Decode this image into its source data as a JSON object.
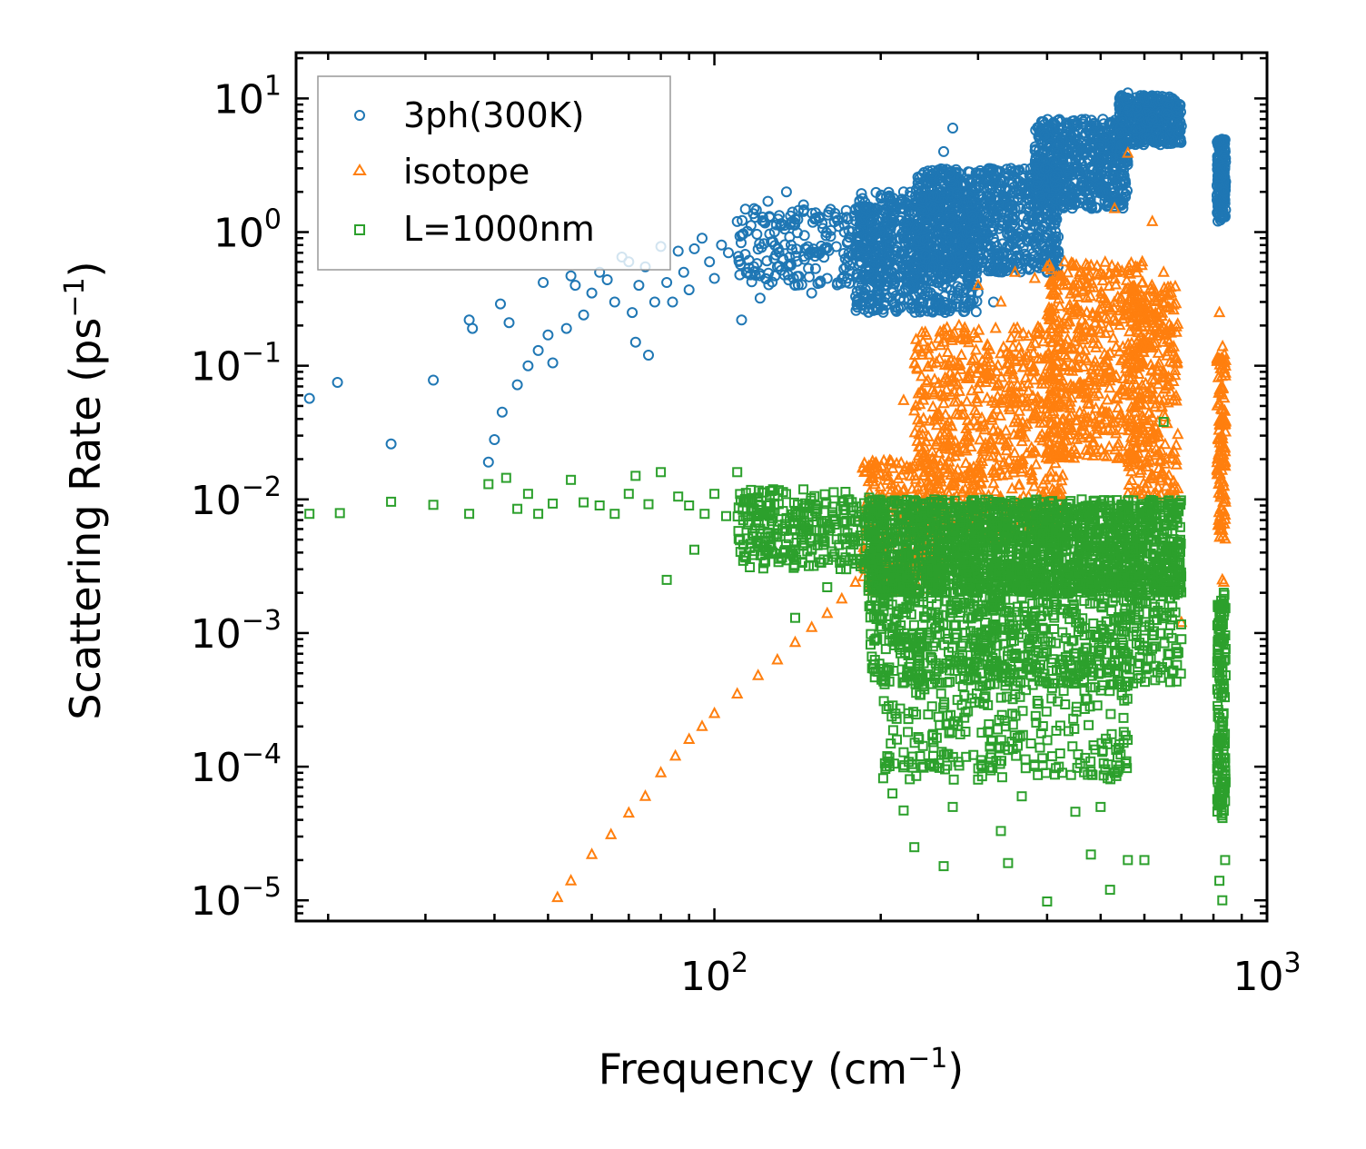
{
  "chart_data": {
    "type": "scatter",
    "title": "",
    "xlabel": "Frequency (cm",
    "xlabel_sup": "−1",
    "xlabel_tail": ")",
    "ylabel": "Scattering Rate (ps",
    "ylabel_sup": "−1",
    "ylabel_tail": ")",
    "xscale": "log",
    "yscale": "log",
    "xlim": [
      17.5,
      1000
    ],
    "ylim": [
      7e-06,
      22
    ],
    "x_ticks": [
      {
        "value": 100,
        "base": "10",
        "exp": "2"
      },
      {
        "value": 1000,
        "base": "10",
        "exp": "3"
      }
    ],
    "y_ticks": [
      {
        "value": 10,
        "base": "10",
        "exp": "1"
      },
      {
        "value": 1,
        "base": "10",
        "exp": "0"
      },
      {
        "value": 0.1,
        "base": "10",
        "exp": "−1"
      },
      {
        "value": 0.01,
        "base": "10",
        "exp": "−2"
      },
      {
        "value": 0.001,
        "base": "10",
        "exp": "−3"
      },
      {
        "value": 0.0001,
        "base": "10",
        "exp": "−4"
      },
      {
        "value": 1e-05,
        "base": "10",
        "exp": "−5"
      }
    ],
    "legend_position": "top-left",
    "series": [
      {
        "name": "3ph(300K)",
        "marker": "circle",
        "color": "#1f77b4",
        "points": [
          [
            18.5,
            0.057
          ],
          [
            20.8,
            0.075
          ],
          [
            26,
            0.026
          ],
          [
            31,
            0.078
          ],
          [
            36,
            0.22
          ],
          [
            36.5,
            0.19
          ],
          [
            39,
            0.019
          ],
          [
            40,
            0.028
          ],
          [
            41,
            0.29
          ],
          [
            41.3,
            0.045
          ],
          [
            42.5,
            0.21
          ],
          [
            44,
            0.072
          ],
          [
            46,
            0.1
          ],
          [
            48,
            0.13
          ],
          [
            49,
            0.42
          ],
          [
            50,
            0.17
          ],
          [
            51,
            0.105
          ],
          [
            54,
            0.19
          ],
          [
            55,
            0.47
          ],
          [
            56,
            0.4
          ],
          [
            58,
            0.24
          ],
          [
            60,
            0.35
          ],
          [
            62,
            0.5
          ],
          [
            64,
            0.44
          ],
          [
            66,
            0.3
          ],
          [
            68,
            0.65
          ],
          [
            70,
            0.6
          ],
          [
            71,
            0.25
          ],
          [
            72,
            0.15
          ],
          [
            73,
            0.4
          ],
          [
            75,
            0.55
          ],
          [
            76,
            0.12
          ],
          [
            78,
            0.3
          ],
          [
            80,
            0.78
          ],
          [
            82,
            0.42
          ],
          [
            84,
            0.3
          ],
          [
            86,
            0.72
          ],
          [
            88,
            0.5
          ],
          [
            90,
            0.37
          ],
          [
            92,
            0.75
          ],
          [
            95,
            0.9
          ],
          [
            98,
            0.6
          ],
          [
            100,
            0.45
          ],
          [
            103,
            0.8
          ],
          [
            106,
            0.7
          ],
          [
            110,
            1.2
          ],
          [
            112,
            0.22
          ],
          [
            115,
            0.5
          ],
          [
            118,
            1.5
          ],
          [
            121,
            0.32
          ],
          [
            125,
            1.7
          ],
          [
            130,
            0.55
          ],
          [
            135,
            2.0
          ],
          [
            140,
            0.4
          ],
          [
            145,
            1.6
          ],
          [
            150,
            0.35
          ],
          [
            155,
            1.3
          ],
          [
            160,
            0.45
          ],
          [
            168,
            1.1
          ],
          [
            175,
            0.65
          ],
          [
            185,
            0.3
          ],
          [
            200,
            1.8
          ],
          [
            210,
            0.5
          ],
          [
            220,
            2.0
          ],
          [
            235,
            0.3
          ],
          [
            250,
            1.5
          ],
          [
            260,
            4.0
          ],
          [
            270,
            6.0
          ],
          [
            280,
            0.5
          ],
          [
            300,
            2.5
          ],
          [
            320,
            0.3
          ],
          [
            350,
            1.5
          ],
          [
            380,
            2.8
          ],
          [
            400,
            0.5
          ],
          [
            420,
            3.5
          ],
          [
            450,
            4.0
          ],
          [
            480,
            5.5
          ],
          [
            500,
            2.0
          ],
          [
            520,
            6.5
          ],
          [
            540,
            9.0
          ],
          [
            560,
            11.0
          ],
          [
            580,
            8.5
          ],
          [
            600,
            10.0
          ],
          [
            620,
            7.0
          ],
          [
            650,
            5.0
          ],
          [
            680,
            6.5
          ],
          [
            700,
            6.2
          ],
          [
            820,
            4.8
          ],
          [
            825,
            1.5
          ],
          [
            830,
            3.0
          ],
          [
            835,
            2.0
          ],
          [
            840,
            1.3
          ]
        ],
        "clouds": [
          {
            "x": [
              110,
              240
            ],
            "y": [
              0.4,
              1.5
            ],
            "n": 300
          },
          {
            "x": [
              180,
              300
            ],
            "y": [
              0.25,
              2.0
            ],
            "n": 700
          },
          {
            "x": [
              230,
              420
            ],
            "y": [
              0.5,
              3.0
            ],
            "n": 800
          },
          {
            "x": [
              380,
              560
            ],
            "y": [
              1.5,
              7.0
            ],
            "n": 600
          },
          {
            "x": [
              540,
              700
            ],
            "y": [
              4.5,
              10.5
            ],
            "n": 350
          },
          {
            "x": [
              812,
              842
            ],
            "y": [
              1.2,
              5.0
            ],
            "n": 150
          }
        ]
      },
      {
        "name": "isotope",
        "marker": "triangle",
        "color": "#ff7f0e",
        "points": [
          [
            52,
            1.05e-05
          ],
          [
            55,
            1.4e-05
          ],
          [
            60,
            2.2e-05
          ],
          [
            65,
            3.1e-05
          ],
          [
            70,
            4.5e-05
          ],
          [
            75,
            6e-05
          ],
          [
            80,
            9e-05
          ],
          [
            85,
            0.00012
          ],
          [
            90,
            0.00016
          ],
          [
            95,
            0.0002
          ],
          [
            100,
            0.00025
          ],
          [
            110,
            0.00035
          ],
          [
            120,
            0.00048
          ],
          [
            130,
            0.00063
          ],
          [
            140,
            0.00085
          ],
          [
            150,
            0.0011
          ],
          [
            160,
            0.0014
          ],
          [
            170,
            0.0018
          ],
          [
            180,
            0.0024
          ],
          [
            195,
            0.004
          ],
          [
            210,
            0.008
          ],
          [
            220,
            0.055
          ],
          [
            240,
            0.06
          ],
          [
            260,
            0.15
          ],
          [
            280,
            0.12
          ],
          [
            300,
            0.4
          ],
          [
            330,
            0.3
          ],
          [
            350,
            0.5
          ],
          [
            380,
            0.45
          ],
          [
            400,
            0.55
          ],
          [
            430,
            0.12
          ],
          [
            470,
            0.2
          ],
          [
            500,
            0.5
          ],
          [
            530,
            1.5
          ],
          [
            560,
            3.9
          ],
          [
            590,
            0.25
          ],
          [
            620,
            1.2
          ],
          [
            650,
            0.5
          ],
          [
            690,
            0.012
          ],
          [
            700,
            0.0012
          ],
          [
            820,
            0.25
          ],
          [
            825,
            0.02
          ],
          [
            830,
            0.0025
          ],
          [
            835,
            0.0024
          ],
          [
            840,
            0.01
          ]
        ],
        "clouds": [
          {
            "x": [
              185,
              260
            ],
            "y": [
              0.002,
              0.02
            ],
            "n": 250
          },
          {
            "x": [
              230,
              430
            ],
            "y": [
              0.005,
              0.2
            ],
            "n": 700
          },
          {
            "x": [
              400,
              600
            ],
            "y": [
              0.02,
              0.6
            ],
            "n": 500
          },
          {
            "x": [
              560,
              690
            ],
            "y": [
              0.01,
              0.4
            ],
            "n": 300
          },
          {
            "x": [
              812,
              842
            ],
            "y": [
              0.005,
              0.15
            ],
            "n": 120
          }
        ]
      },
      {
        "name": "L=1000nm",
        "marker": "square",
        "color": "#2ca02c",
        "points": [
          [
            18.5,
            0.0078
          ],
          [
            21,
            0.0079
          ],
          [
            26,
            0.0096
          ],
          [
            31,
            0.0091
          ],
          [
            36,
            0.0078
          ],
          [
            39,
            0.013
          ],
          [
            42,
            0.0145
          ],
          [
            44,
            0.0085
          ],
          [
            46,
            0.011
          ],
          [
            48,
            0.0078
          ],
          [
            51,
            0.0093
          ],
          [
            55,
            0.014
          ],
          [
            58,
            0.0095
          ],
          [
            62,
            0.009
          ],
          [
            66,
            0.0078
          ],
          [
            70,
            0.011
          ],
          [
            72,
            0.015
          ],
          [
            76,
            0.0092
          ],
          [
            80,
            0.016
          ],
          [
            82,
            0.0025
          ],
          [
            86,
            0.0105
          ],
          [
            90,
            0.009
          ],
          [
            92,
            0.0042
          ],
          [
            96,
            0.0078
          ],
          [
            100,
            0.011
          ],
          [
            105,
            0.0075
          ],
          [
            110,
            0.016
          ],
          [
            115,
            0.0065
          ],
          [
            120,
            0.0045
          ],
          [
            125,
            0.009
          ],
          [
            130,
            0.0055
          ],
          [
            135,
            0.0035
          ],
          [
            140,
            0.0013
          ],
          [
            150,
            0.0042
          ],
          [
            160,
            0.0022
          ],
          [
            170,
            0.0035
          ],
          [
            180,
            0.0033
          ],
          [
            190,
            0.0022
          ],
          [
            200,
            0.0013
          ],
          [
            205,
            0.0001
          ],
          [
            210,
            6.3e-05
          ],
          [
            220,
            4.7e-05
          ],
          [
            230,
            2.5e-05
          ],
          [
            250,
            0.0001
          ],
          [
            260,
            1.8e-05
          ],
          [
            270,
            5e-05
          ],
          [
            300,
            8e-05
          ],
          [
            330,
            3.3e-05
          ],
          [
            340,
            1.9e-05
          ],
          [
            360,
            6e-05
          ],
          [
            400,
            9.8e-06
          ],
          [
            420,
            0.0001
          ],
          [
            450,
            4.6e-05
          ],
          [
            480,
            2.2e-05
          ],
          [
            500,
            5e-05
          ],
          [
            520,
            1.2e-05
          ],
          [
            560,
            2e-05
          ],
          [
            600,
            2e-05
          ],
          [
            650,
            0.038
          ],
          [
            700,
            0.0009
          ],
          [
            820,
            1.4e-05
          ],
          [
            825,
            6e-05
          ],
          [
            830,
            1e-05
          ],
          [
            835,
            0.002
          ],
          [
            840,
            2e-05
          ]
        ],
        "clouds": [
          {
            "x": [
              110,
              200
            ],
            "y": [
              0.003,
              0.012
            ],
            "n": 300
          },
          {
            "x": [
              190,
              700
            ],
            "y": [
              0.002,
              0.01
            ],
            "n": 1800
          },
          {
            "x": [
              190,
              700
            ],
            "y": [
              0.0004,
              0.003
            ],
            "n": 900
          },
          {
            "x": [
              200,
              560
            ],
            "y": [
              8e-05,
              0.0006
            ],
            "n": 300
          },
          {
            "x": [
              812,
              842
            ],
            "y": [
              4e-05,
              0.002
            ],
            "n": 160
          }
        ]
      }
    ]
  }
}
